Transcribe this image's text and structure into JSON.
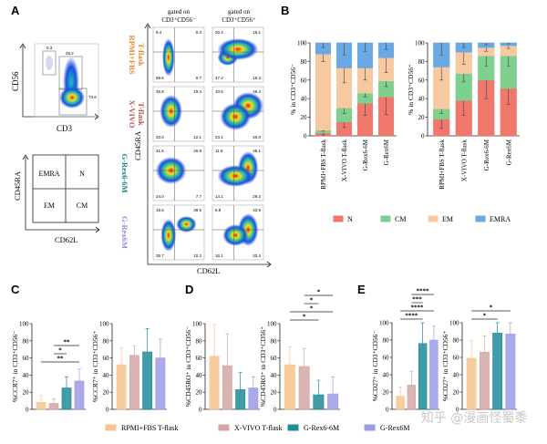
{
  "panels": {
    "a": "A",
    "b": "B",
    "c": "C",
    "d": "D",
    "e": "E"
  },
  "colors": {
    "rpmi": "#f6c48e",
    "xvivo": "#d4a6a6",
    "grex66m": "#1f8c99",
    "grex6m": "#9b9be6",
    "rpmi_text": "#e08a2c",
    "xvivo_text": "#b4564e",
    "grex66m_text": "#1f7a8a",
    "grex6m_text": "#8a8ad8",
    "N": "#f0776c",
    "CM": "#7fcf8f",
    "EM": "#f7c9a0",
    "EMRA": "#6aa9e3"
  },
  "panel_a": {
    "scatter": {
      "ylabel": "CD56",
      "xlabel": "CD3",
      "gates": [
        "0.3",
        "25.2",
        "73.6"
      ]
    },
    "quadrant_key": {
      "ylabel": "CD45RA",
      "xlabel": "CD62L",
      "cells": [
        "EMRA",
        "N",
        "EM",
        "CM"
      ]
    },
    "col_headers": [
      {
        "line1": "gated on",
        "line2": "CD3⁺CD56⁻"
      },
      {
        "line1": "gated on",
        "line2": "CD3⁺CD56⁺"
      }
    ],
    "ylabel": "CD45RA",
    "xlabel": "CD62L",
    "rows": [
      {
        "label1": "RPMI+FBS",
        "label2": "T-flask",
        "color_key": "rpmi_text",
        "plots": [
          [
            "9.4",
            "0.3",
            "89.6",
            "0.7"
          ],
          [
            "20.4",
            "16.1",
            "47.2",
            "16.3"
          ]
        ]
      },
      {
        "label1": "X-VIVO",
        "label2": "T-flask",
        "color_key": "xvivo_text",
        "plots": [
          [
            "35.8",
            "19.4",
            "33.0",
            "12.1"
          ],
          [
            "10.6",
            "46.3",
            "23.1",
            "20.0"
          ]
        ]
      },
      {
        "label1": "G-Rex6-6M",
        "label2": "",
        "color_key": "grex66m_text",
        "plots": [
          [
            "41.5",
            "26.8",
            "24.0",
            "7.7"
          ],
          [
            "11.6",
            "45.1",
            "14.1",
            "29.2"
          ]
        ]
      },
      {
        "label1": "G-Rex6M",
        "label2": "",
        "color_key": "grex6m_text",
        "plots": [
          [
            "15.6",
            "38.5",
            "35.7",
            "10.2"
          ],
          [
            "6.8",
            "43.9",
            "16.1",
            "33.4"
          ]
        ]
      }
    ]
  },
  "legend_b": [
    "N",
    "CM",
    "EM",
    "EMRA"
  ],
  "legend_groups": [
    "RPMI+FBS T-flask",
    "X-VIVO T-flask",
    "G-Rex6-6M",
    "G-Rex6M"
  ],
  "watermark": "知乎 @漫画怪蜀黍",
  "chart_data": [
    {
      "id": "B-left",
      "type": "bar",
      "stacked": true,
      "ylabel": "% in CD3⁺CD56⁻",
      "ylim": [
        0,
        100
      ],
      "yticks": [
        0,
        20,
        40,
        60,
        80,
        100
      ],
      "categories": [
        "RPMI+FBS T-flask",
        "X-VIVO T-flask",
        "G-Rex6-6M",
        "G-Rex6M"
      ],
      "series": [
        {
          "name": "N",
          "values": [
            3,
            15,
            35,
            42
          ],
          "err": [
            2,
            6,
            13,
            19
          ]
        },
        {
          "name": "CM",
          "values": [
            3,
            15,
            11,
            17
          ],
          "err": [
            1,
            6,
            4,
            6
          ]
        },
        {
          "name": "EM",
          "values": [
            82,
            43,
            27,
            25
          ],
          "err": [
            8,
            16,
            13,
            16
          ]
        },
        {
          "name": "EMRA",
          "values": [
            12,
            27,
            27,
            16
          ],
          "err": [
            5,
            13,
            9,
            7
          ]
        }
      ]
    },
    {
      "id": "B-right",
      "type": "bar",
      "stacked": true,
      "ylabel": "% in CD3⁺CD56⁺",
      "ylim": [
        0,
        100
      ],
      "yticks": [
        0,
        20,
        40,
        60,
        80,
        100
      ],
      "categories": [
        "RPMI+FBS T-flask",
        "X-VIVO T-flask",
        "G-Rex6-6M",
        "G-Rex6M"
      ],
      "series": [
        {
          "name": "N",
          "values": [
            18,
            38,
            60,
            51
          ],
          "err": [
            10,
            16,
            20,
            17
          ]
        },
        {
          "name": "CM",
          "values": [
            11,
            29,
            26,
            35
          ],
          "err": [
            5,
            9,
            11,
            11
          ]
        },
        {
          "name": "EM",
          "values": [
            45,
            23,
            9,
            11
          ],
          "err": [
            14,
            13,
            4,
            3
          ]
        },
        {
          "name": "EMRA",
          "values": [
            26,
            10,
            5,
            3
          ],
          "err": [
            13,
            5,
            2,
            1
          ]
        }
      ]
    },
    {
      "id": "C-left",
      "type": "bar",
      "ylabel": "%CCR7⁺ in CD3⁺CD56⁻",
      "ylim": [
        0,
        100
      ],
      "yticks": [
        0,
        20,
        40,
        60,
        80,
        100
      ],
      "categories": [
        "RPMI+FBS T-flask",
        "X-VIVO T-flask",
        "G-Rex6-6M",
        "G-Rex6M"
      ],
      "values": [
        8,
        7,
        25,
        33
      ],
      "err": [
        8,
        5,
        13,
        14
      ],
      "significance": [
        {
          "from": 1,
          "to": 3,
          "label": "**"
        },
        {
          "from": 1,
          "to": 2,
          "label": "*"
        },
        {
          "from": 0,
          "to": 3,
          "label": "**"
        }
      ]
    },
    {
      "id": "C-right",
      "type": "bar",
      "ylabel": "%CCR7⁺ in CD3⁺CD56⁺",
      "ylim": [
        0,
        100
      ],
      "yticks": [
        0,
        20,
        40,
        60,
        80,
        100
      ],
      "categories": [
        "RPMI+FBS T-flask",
        "X-VIVO T-flask",
        "G-Rex6-6M",
        "G-Rex6M"
      ],
      "values": [
        52,
        63,
        67,
        60
      ],
      "err": [
        20,
        11,
        27,
        22
      ],
      "significance": []
    },
    {
      "id": "D-left",
      "type": "bar",
      "ylabel": "%CD45RO⁺ in CD3⁺CD56⁻",
      "ylim": [
        0,
        100
      ],
      "yticks": [
        0,
        20,
        40,
        60,
        80,
        100
      ],
      "categories": [
        "RPMI+FBS T-flask",
        "X-VIVO T-flask",
        "G-Rex6-6M",
        "G-Rex6M"
      ],
      "values": [
        62,
        51,
        23,
        25
      ],
      "err": [
        37,
        37,
        20,
        13
      ],
      "significance": []
    },
    {
      "id": "D-right",
      "type": "bar",
      "ylabel": "%CD45RO⁺ in CD3⁺CD56⁺",
      "ylim": [
        0,
        100
      ],
      "yticks": [
        0,
        20,
        40,
        60,
        80,
        100
      ],
      "categories": [
        "RPMI+FBS T-flask",
        "X-VIVO T-flask",
        "G-Rex6-6M",
        "G-Rex6M"
      ],
      "values": [
        52,
        50,
        17,
        18
      ],
      "err": [
        21,
        21,
        17,
        20
      ],
      "significance": [
        {
          "from": 1,
          "to": 3,
          "label": "*"
        },
        {
          "from": 1,
          "to": 2,
          "label": "*"
        },
        {
          "from": 0,
          "to": 3,
          "label": "*"
        },
        {
          "from": 0,
          "to": 2,
          "label": "*"
        }
      ]
    },
    {
      "id": "E-left",
      "type": "bar",
      "ylabel": "%CD27⁺ in CD3⁺CD56⁻",
      "ylim": [
        0,
        100
      ],
      "yticks": [
        0,
        20,
        40,
        60,
        80,
        100
      ],
      "categories": [
        "RPMI+FBS T-flask",
        "X-VIVO T-flask",
        "G-Rex6-6M",
        "G-Rex6M"
      ],
      "values": [
        15,
        28,
        76,
        80
      ],
      "err": [
        11,
        16,
        24,
        16
      ],
      "significance": [
        {
          "from": 1,
          "to": 3,
          "label": "****"
        },
        {
          "from": 1,
          "to": 2,
          "label": "***"
        },
        {
          "from": 0,
          "to": 3,
          "label": "****"
        },
        {
          "from": 0,
          "to": 2,
          "label": "****"
        }
      ]
    },
    {
      "id": "E-right",
      "type": "bar",
      "ylabel": "%CD27⁺ in CD3⁺CD56⁺",
      "ylim": [
        0,
        100
      ],
      "yticks": [
        0,
        20,
        40,
        60,
        80,
        100
      ],
      "categories": [
        "RPMI+FBS T-flask",
        "X-VIVO T-flask",
        "G-Rex6-6M",
        "G-Rex6M"
      ],
      "values": [
        59,
        66,
        88,
        87
      ],
      "err": [
        20,
        19,
        12,
        13
      ],
      "significance": [
        {
          "from": 0,
          "to": 3,
          "label": "*"
        },
        {
          "from": 0,
          "to": 2,
          "label": "*"
        }
      ]
    }
  ]
}
